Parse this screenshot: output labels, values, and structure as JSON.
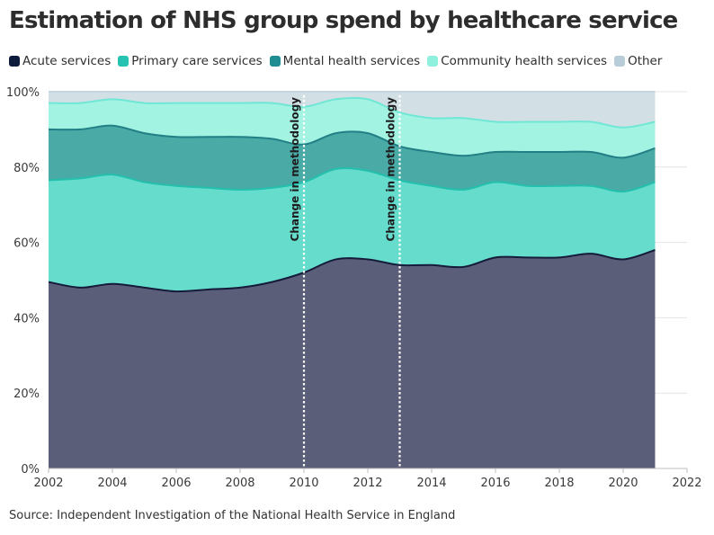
{
  "chart_data": {
    "type": "area",
    "stacked": true,
    "title": "Estimation of NHS group spend by healthcare service",
    "source": "Source: Independent Investigation of the National Health Service in England",
    "x": [
      2002,
      2003,
      2004,
      2005,
      2006,
      2007,
      2008,
      2009,
      2010,
      2011,
      2012,
      2013,
      2014,
      2015,
      2016,
      2017,
      2018,
      2019,
      2020,
      2021
    ],
    "series": [
      {
        "name": "Acute services",
        "color": "#5a5e78",
        "values": [
          49.5,
          48,
          49,
          48,
          47,
          47.5,
          48,
          49.5,
          52,
          55.5,
          55.5,
          54,
          54,
          53.5,
          56,
          56,
          56,
          57,
          55.5,
          58
        ]
      },
      {
        "name": "Primary care services",
        "color": "#66dccc",
        "values": [
          27,
          29,
          29,
          28,
          28,
          27,
          26,
          25,
          24,
          24,
          23.5,
          22.5,
          21,
          20.5,
          20,
          19,
          19,
          18,
          18,
          18
        ]
      },
      {
        "name": "Mental health services",
        "color": "#4aaaa6",
        "values": [
          13.5,
          13,
          13,
          13,
          13,
          13.5,
          14,
          13,
          10,
          9.5,
          10,
          9,
          9,
          9,
          8,
          9,
          9,
          9,
          9,
          9
        ]
      },
      {
        "name": "Community health services",
        "color": "#a3f3e3",
        "values": [
          7,
          7,
          7,
          8,
          9,
          9,
          9,
          9.5,
          10,
          9,
          9,
          9,
          9,
          10,
          8,
          8,
          8,
          8,
          8,
          7
        ]
      },
      {
        "name": "Other",
        "color": "#d2e0e6",
        "values": [
          3,
          3,
          2,
          3,
          3,
          3,
          3,
          3,
          4,
          2,
          2,
          5.5,
          7,
          7,
          8,
          8,
          8,
          8,
          9.5,
          8
        ]
      }
    ],
    "legend_colors": [
      "#0e1a3c",
      "#26c2b1",
      "#1f8d92",
      "#8ff0dd",
      "#b9cdd9"
    ],
    "line_colors": [
      "#151b3a",
      "#22c0ad",
      "#227f85",
      "#6fe7d4",
      "#c3d6df"
    ],
    "xlim": [
      2002,
      2022
    ],
    "xticks": [
      2002,
      2004,
      2006,
      2008,
      2010,
      2012,
      2014,
      2016,
      2018,
      2020,
      2022
    ],
    "ylim": [
      0,
      100
    ],
    "yticks": [
      0,
      20,
      40,
      60,
      80,
      100
    ],
    "ytick_suffix": "%",
    "grid": true,
    "legend_position": "top",
    "annotations": [
      {
        "x": 2010,
        "label": "Change in methodology"
      },
      {
        "x": 2013,
        "label": "Change in methodology"
      }
    ]
  }
}
